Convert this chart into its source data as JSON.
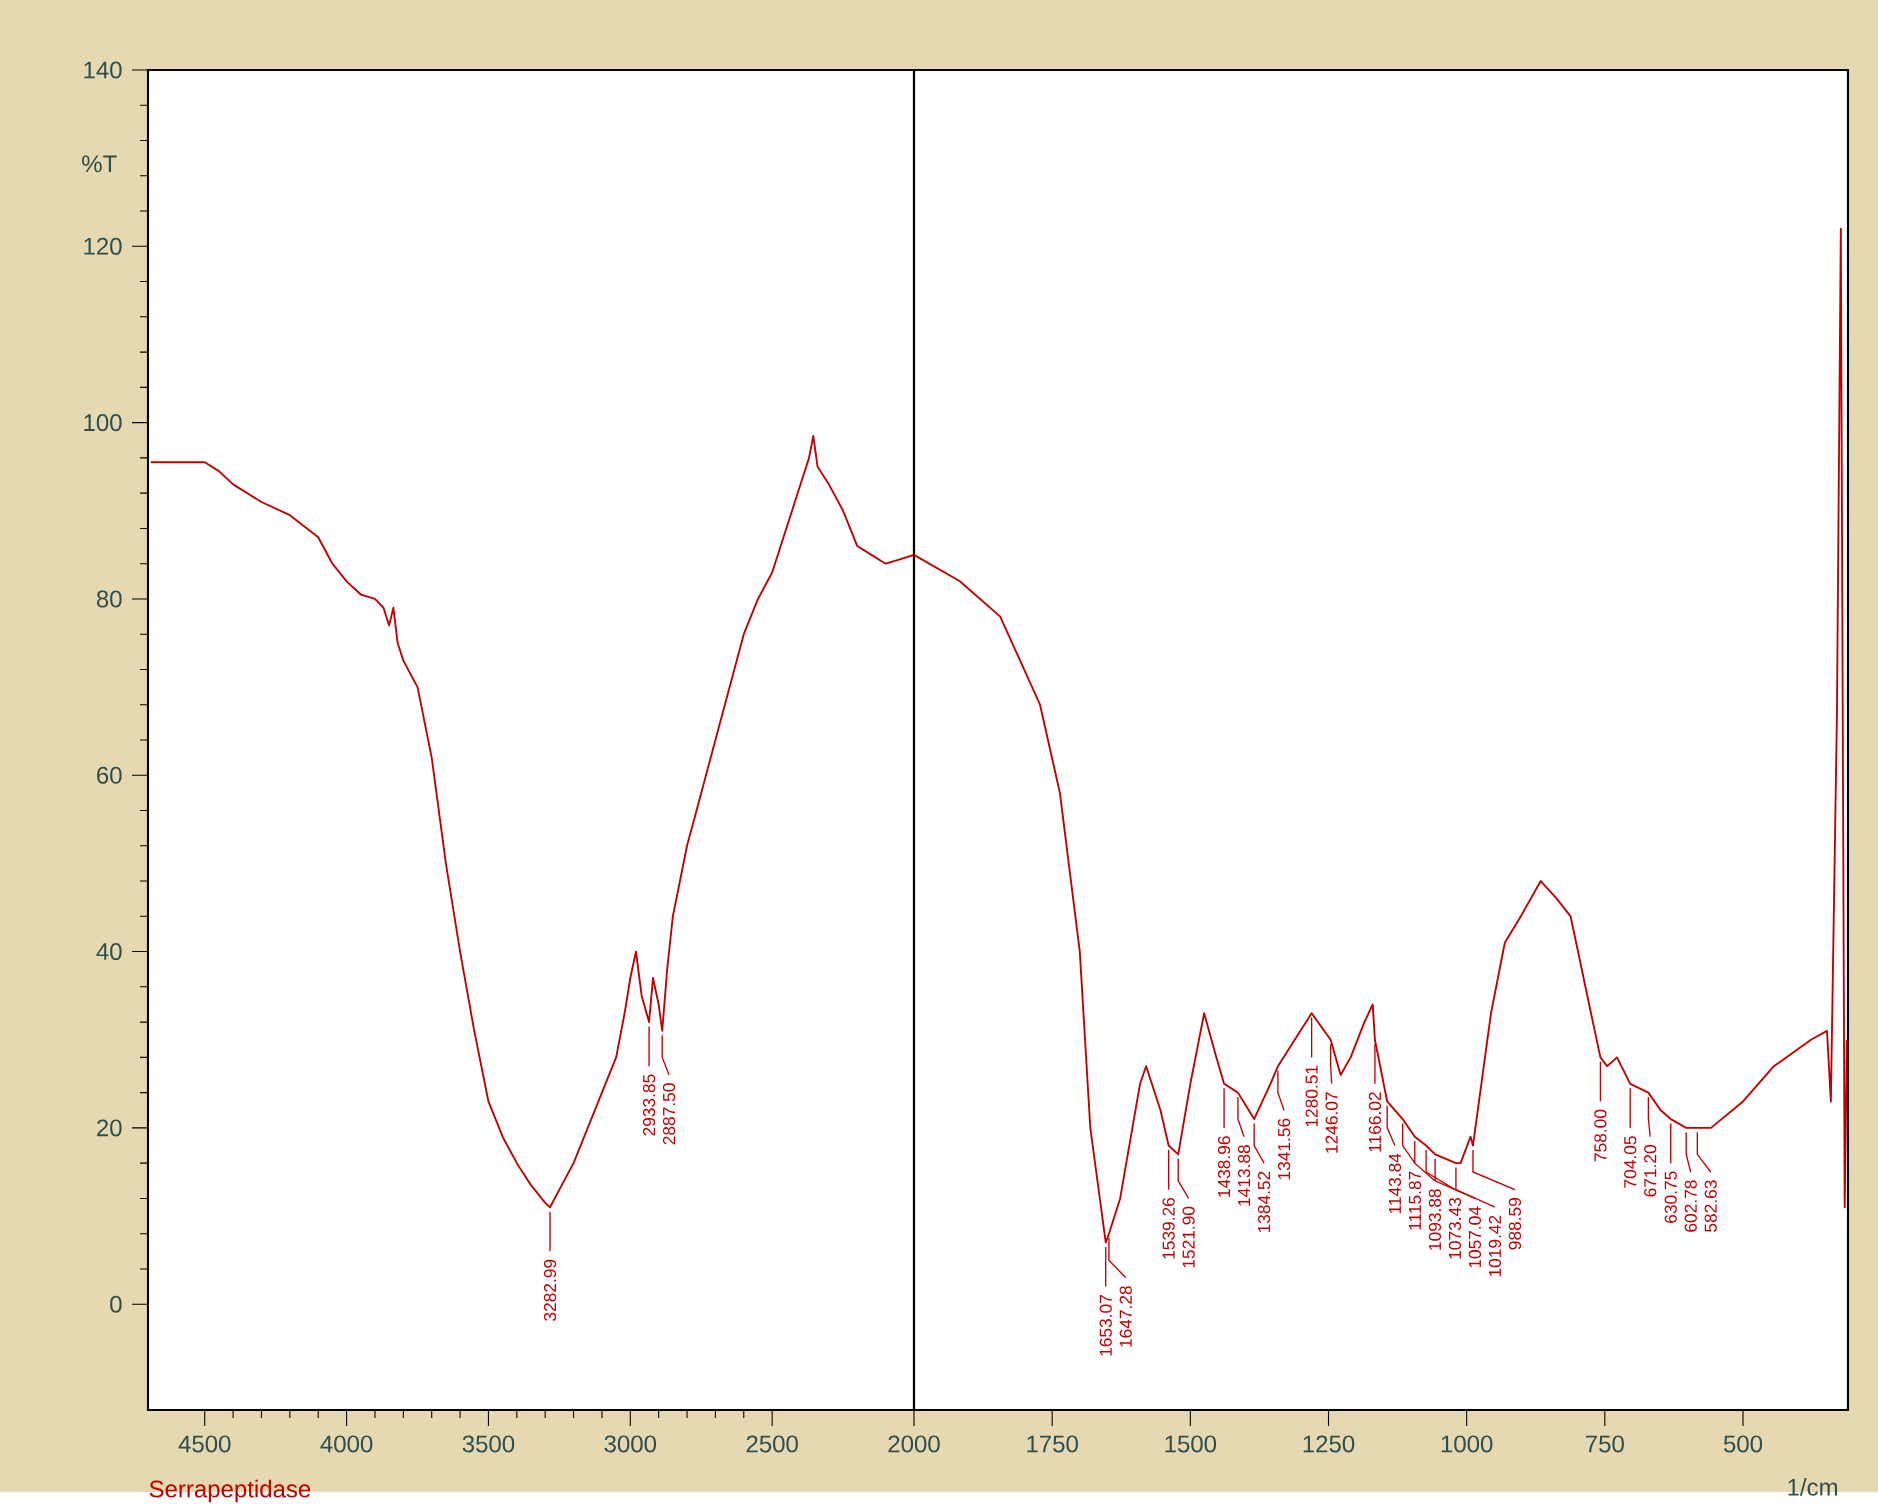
{
  "chart_data": [
    {
      "type": "line",
      "ylabel": "%T",
      "xlim": [
        4700,
        2000
      ],
      "ylim": [
        -12,
        140
      ],
      "xticks": [
        4500,
        4000,
        3500,
        3000,
        2500
      ],
      "yticks": [
        0,
        20,
        40,
        60,
        80,
        100,
        120,
        140
      ],
      "series": [
        {
          "color": "#c00000",
          "x": [
            4690,
            4500,
            4450,
            4400,
            4300,
            4200,
            4100,
            4050,
            4000,
            3950,
            3900,
            3870,
            3850,
            3835,
            3820,
            3800,
            3750,
            3700,
            3650,
            3600,
            3550,
            3500,
            3450,
            3400,
            3350,
            3300,
            3282.99,
            3250,
            3200,
            3150,
            3100,
            3050,
            3020,
            3000,
            2980,
            2960,
            2933.85,
            2920,
            2900,
            2887.5,
            2870,
            2850,
            2800,
            2750,
            2700,
            2650,
            2600,
            2550,
            2500,
            2450,
            2400,
            2370,
            2355,
            2340,
            2300,
            2250,
            2200,
            2150,
            2100,
            2050,
            2000
          ],
          "values": [
            95.5,
            95.5,
            94.5,
            93,
            91,
            89.5,
            87,
            84,
            82,
            80.5,
            80,
            79,
            77,
            79,
            75,
            73,
            70,
            62,
            50,
            40,
            31,
            23,
            19,
            16,
            13.5,
            11.5,
            11,
            13,
            16,
            20,
            24,
            28,
            33,
            37,
            40,
            35,
            32,
            37,
            34,
            31,
            38,
            44,
            52,
            58,
            64,
            70,
            76,
            80,
            83,
            88,
            93,
            96,
            98.5,
            95,
            93,
            90,
            86,
            85,
            84,
            84.5,
            85
          ]
        }
      ],
      "annotations": [
        {
          "text": "3282.99",
          "x": 3282.99,
          "y": 11
        },
        {
          "text": "2933.85",
          "x": 2933.85,
          "y": 32
        },
        {
          "text": "2887.50",
          "x": 2887.5,
          "y": 31
        },
        "Serrapeptidase"
      ]
    },
    {
      "type": "line",
      "xlabel": "1/cm",
      "xlim": [
        2000,
        310
      ],
      "ylim": [
        -12,
        140
      ],
      "xticks": [
        2000,
        1750,
        1500,
        1250,
        1000,
        750,
        500
      ],
      "tick_labels": "x",
      "series": [
        {
          "color": "#c00000",
          "x": [
            2000,
            1917,
            1844,
            1772,
            1736,
            1700,
            1681,
            1653.07,
            1647.28,
            1627,
            1591,
            1580,
            1554,
            1539.26,
            1521.9,
            1500,
            1475,
            1453,
            1438.96,
            1413.88,
            1384.52,
            1355,
            1341.56,
            1301,
            1280.51,
            1246.07,
            1228,
            1210,
            1185,
            1170,
            1166.02,
            1143.84,
            1115.87,
            1093.88,
            1073.43,
            1057.04,
            1019.42,
            1011,
            993,
            988.59,
            956,
            931,
            902,
            866,
            837,
            812,
            775,
            758,
            746,
            728,
            704.05,
            671.2,
            649,
            630.75,
            602.78,
            582.63,
            558,
            500,
            444,
            377,
            348,
            341,
            330,
            323,
            316,
            312
          ],
          "values": [
            85,
            82,
            78,
            68,
            58,
            40,
            20,
            7,
            8,
            12,
            25,
            27,
            22,
            18,
            17,
            25,
            33,
            28,
            25,
            24,
            21,
            25,
            27,
            31,
            33,
            30,
            26,
            28,
            32,
            34,
            30,
            23,
            21,
            19,
            18,
            17,
            16,
            16,
            19,
            18,
            33,
            41,
            44,
            48,
            46,
            44,
            33,
            28,
            27,
            28,
            25,
            24,
            22,
            21,
            20,
            20,
            20,
            23,
            27,
            30,
            31,
            23,
            67,
            122,
            11,
            30
          ]
        }
      ],
      "annotations": [
        {
          "text": "1653.07",
          "x": 1653.07,
          "y": 7
        },
        {
          "text": "1647.28",
          "x": 1647.28,
          "y": 8
        },
        {
          "text": "1539.26",
          "x": 1539.26,
          "y": 18
        },
        {
          "text": "1521.90",
          "x": 1521.9,
          "y": 17
        },
        {
          "text": "1438.96",
          "x": 1438.96,
          "y": 25
        },
        {
          "text": "1413.88",
          "x": 1413.88,
          "y": 24
        },
        {
          "text": "1384.52",
          "x": 1384.52,
          "y": 21
        },
        {
          "text": "1341.56",
          "x": 1341.56,
          "y": 27
        },
        {
          "text": "1280.51",
          "x": 1280.51,
          "y": 33
        },
        {
          "text": "1246.07",
          "x": 1246.07,
          "y": 30
        },
        {
          "text": "1166.02",
          "x": 1166.02,
          "y": 30
        },
        {
          "text": "1143.84",
          "x": 1143.84,
          "y": 23
        },
        {
          "text": "1115.87",
          "x": 1115.87,
          "y": 21
        },
        {
          "text": "1093.88",
          "x": 1093.88,
          "y": 19
        },
        {
          "text": "1073.43",
          "x": 1073.43,
          "y": 18
        },
        {
          "text": "1057.04",
          "x": 1057.04,
          "y": 17
        },
        {
          "text": "1019.42",
          "x": 1019.42,
          "y": 16
        },
        {
          "text": "988.59",
          "x": 988.59,
          "y": 18
        },
        {
          "text": "758.00",
          "x": 758,
          "y": 28
        },
        {
          "text": "704.05",
          "x": 704.05,
          "y": 25
        },
        {
          "text": "671.20",
          "x": 671.2,
          "y": 24
        },
        {
          "text": "630.75",
          "x": 630.75,
          "y": 21
        },
        {
          "text": "602.78",
          "x": 602.78,
          "y": 20
        },
        {
          "text": "582.63",
          "x": 582.63,
          "y": 20
        }
      ]
    }
  ]
}
